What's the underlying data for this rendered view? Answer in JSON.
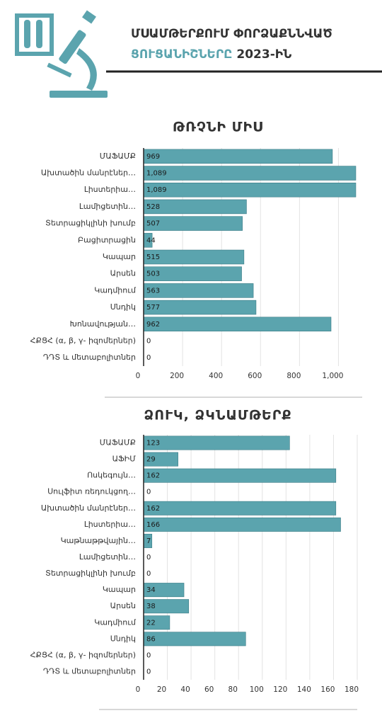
{
  "header": {
    "title_line1": "ՄՍԱՄԹԵՐՔՈՒՄ ՓՈՐՁԱՔՆՆՎԱԾ",
    "title_line2_highlight": "ՑՈՒՑԱՆԻՇՆԵՐԸ",
    "title_line2_rest": "2023-ԻՆ"
  },
  "chart_data": [
    {
      "type": "bar",
      "orientation": "horizontal",
      "title": "ԹՌՉՆԻ ՄԻՍ",
      "categories": [
        "ՄԱՖԱՄՔ",
        "Ախտածին մանրէներ…",
        "Լիստերիա…",
        "Լամիցետին…",
        "Տետրացիկլինի խումբ",
        "Բացիտրացին",
        "Կապար",
        "Արսեն",
        "Կադմիում",
        "Սնդիկ",
        "Խոնավության…",
        "ՀՔՑՀ (α, β, γ- իզոմերներ)",
        "ԴԴՏ և մետաբոլիտներ"
      ],
      "values": [
        969,
        1089,
        1089,
        528,
        507,
        44,
        515,
        503,
        563,
        577,
        962,
        0,
        0
      ],
      "value_labels": [
        "969",
        "1,089",
        "1,089",
        "528",
        "507",
        "44",
        "515",
        "503",
        "563",
        "577",
        "962",
        "0",
        "0"
      ],
      "color": "#5ba4ae",
      "xlim": [
        0,
        1100
      ],
      "xticks": [
        0,
        200,
        400,
        600,
        800,
        {
          "value": 1000,
          "label": "1,000"
        }
      ],
      "grid": true
    },
    {
      "type": "bar",
      "orientation": "horizontal",
      "title": "ՁՈՒԿ, ՁԿՆԱՄԹԵՐՔ",
      "categories": [
        "ՄԱՖԱՄՔ",
        "ԱՖԻՄ",
        "Ոսկեգույն…",
        "Սուլֆիտ ռեդուկցող…",
        "Ախտածին մանրէներ…",
        "Լիստերիա…",
        "Կաթնաթթվային…",
        "Լամիցետին…",
        "Տետրացիկլինի խումբ",
        "Կապար",
        "Արսեն",
        "Կադմիում",
        "Սնդիկ",
        "ՀՔՑՀ (α, β, γ- իզոմերներ)",
        "ԴԴՏ և մետաբոլիտներ"
      ],
      "values": [
        123,
        29,
        162,
        0,
        162,
        166,
        7,
        0,
        0,
        34,
        38,
        22,
        86,
        0,
        0
      ],
      "color": "#5ba4ae",
      "xlim": [
        0,
        180
      ],
      "xticks": [
        0,
        20,
        40,
        60,
        80,
        100,
        120,
        140,
        160,
        180
      ],
      "grid": true
    }
  ]
}
